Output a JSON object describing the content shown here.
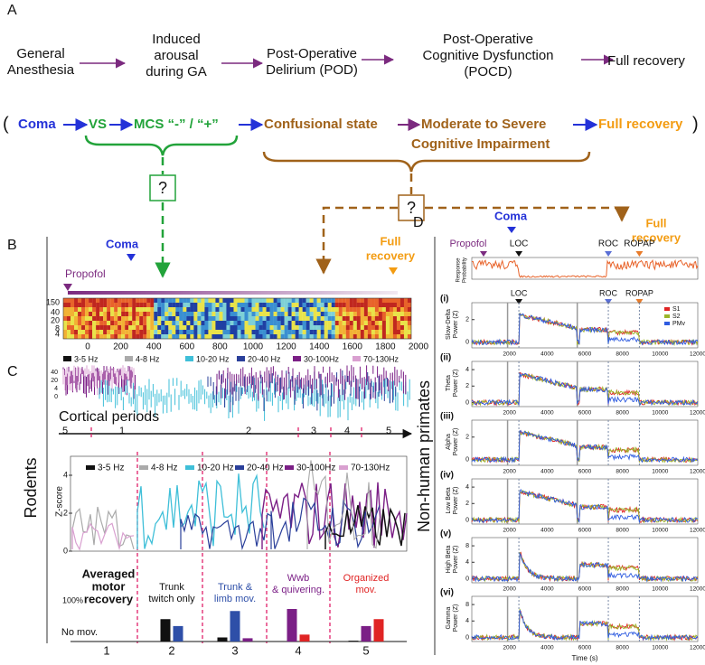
{
  "panel_a": {
    "label": "A",
    "stages": [
      [
        "General",
        "Anesthesia"
      ],
      [
        "Induced",
        "arousal",
        "during GA"
      ],
      [
        "Post-Operative",
        "Delirium (POD)"
      ],
      [
        "Post-Operative",
        "Cognitive Dysfunction",
        "(POCD)"
      ],
      [
        "Full recovery"
      ]
    ],
    "continuum": {
      "open": "(",
      "coma": "Coma",
      "vs": "VS",
      "mcs": "MCS “-” / “+”",
      "confusional": "Confusional state",
      "moderate": [
        "Moderate to Severe",
        "Cognitive Impairment"
      ],
      "full": "Full recovery",
      "close": ")"
    },
    "unknown": [
      "?",
      "?"
    ]
  },
  "panel_b": {
    "label": "B",
    "coma": "Coma",
    "full": [
      "Full",
      "recovery"
    ],
    "propofol": "Propofol",
    "spec_yticks": [
      "150",
      "40",
      "20",
      "8",
      "4"
    ],
    "xticks": [
      0,
      200,
      400,
      600,
      800,
      1000,
      1200,
      1400,
      1600,
      1800,
      2000
    ],
    "xlim": [
      0,
      2000
    ]
  },
  "panel_c": {
    "label": "C",
    "bands": [
      "3-5 Hz",
      "4-8 Hz",
      "10-20 Hz",
      "20-40 Hz",
      "30-100Hz",
      "70-130Hz"
    ],
    "band_colors": [
      "#111111",
      "#aaaaaa",
      "#3fbfd8",
      "#2a3f9a",
      "#7b1f86",
      "#d9a0d0"
    ],
    "trace_yticks": [
      "40",
      "20",
      "4",
      "0"
    ],
    "cortical_title": "Cortical periods",
    "periods": [
      "5",
      "1",
      "2",
      "3",
      "4",
      "5"
    ],
    "zscore_label": "Z-score",
    "zscore_yticks": [
      0,
      2,
      4
    ],
    "zscore_ylim": [
      0,
      5
    ],
    "motor_title": [
      "Averaged",
      "motor",
      "recovery"
    ],
    "motor_descriptions": [
      [
        "No mov."
      ],
      [
        "Trunk",
        "twitch only"
      ],
      [
        "Trunk &",
        "limb mov."
      ],
      [
        "Wwb",
        "& quivering."
      ],
      [
        "Organized",
        "mov."
      ]
    ],
    "motor_description_colors": [
      "#111111",
      "#111111",
      "#2e4fa8",
      "#7b1f86",
      "#e02424"
    ],
    "motor_bars": {
      "type": "bar",
      "categories": [
        "1",
        "2",
        "3",
        "4",
        "5"
      ],
      "ylim": [
        0,
        100
      ],
      "yticks": [
        {
          "value": 100,
          "label": "100%"
        }
      ],
      "series": [
        {
          "color": "#111111",
          "values": [
            0,
            55,
            10,
            null,
            2
          ]
        },
        {
          "color": "#2e4fa8",
          "values": [
            0,
            38,
            75,
            null,
            null
          ]
        },
        {
          "color": "#7b1f86",
          "values": [
            null,
            null,
            8,
            80,
            38
          ]
        },
        {
          "color": "#e02424",
          "values": [
            null,
            null,
            null,
            17,
            55
          ]
        }
      ]
    }
  },
  "species": {
    "rodents": "Rodents",
    "primates": "Non-human primates"
  },
  "panel_d": {
    "label": "D",
    "coma": "Coma",
    "full": [
      "Full",
      "recovery"
    ],
    "propofol": "Propofol",
    "events": [
      "LOC",
      "ROC",
      "ROPAP"
    ],
    "response_label": [
      "Response",
      "Probability"
    ],
    "legend": [
      {
        "name": "S1",
        "color": "#e02424"
      },
      {
        "name": "S2",
        "color": "#9bb52a"
      },
      {
        "name": "PMv",
        "color": "#2e5be0"
      }
    ],
    "panels": [
      {
        "roman": "(i)",
        "ylabel": [
          "Slow-Delta",
          "Power (Z)"
        ],
        "yticks": [
          0,
          2
        ],
        "ylim": [
          -0.5,
          3.5
        ]
      },
      {
        "roman": "(ii)",
        "ylabel": [
          "Theta",
          "Power (Z)"
        ],
        "yticks": [
          0,
          2,
          4
        ],
        "ylim": [
          -0.5,
          5
        ]
      },
      {
        "roman": "(iii)",
        "ylabel": [
          "Alpha",
          "Power (Z)"
        ],
        "yticks": [
          0,
          2
        ],
        "ylim": [
          -0.5,
          3.5
        ]
      },
      {
        "roman": "(iv)",
        "ylabel": [
          "Low Beta",
          "Power (Z)"
        ],
        "yticks": [
          0,
          2,
          4
        ],
        "ylim": [
          -0.5,
          5
        ]
      },
      {
        "roman": "(v)",
        "ylabel": [
          "High Beta",
          "Power (Z)"
        ],
        "yticks": [
          0,
          4,
          8
        ],
        "ylim": [
          -1,
          10
        ]
      },
      {
        "roman": "(vi)",
        "ylabel": [
          "Gamma",
          "Power (Z)"
        ],
        "yticks": [
          0,
          4,
          8
        ],
        "ylim": [
          -1,
          10
        ]
      }
    ],
    "xticks": [
      2000,
      4000,
      6000,
      8000,
      10000,
      12000
    ],
    "xlim": [
      0,
      12000
    ],
    "xlabel": "Time (s)"
  }
}
